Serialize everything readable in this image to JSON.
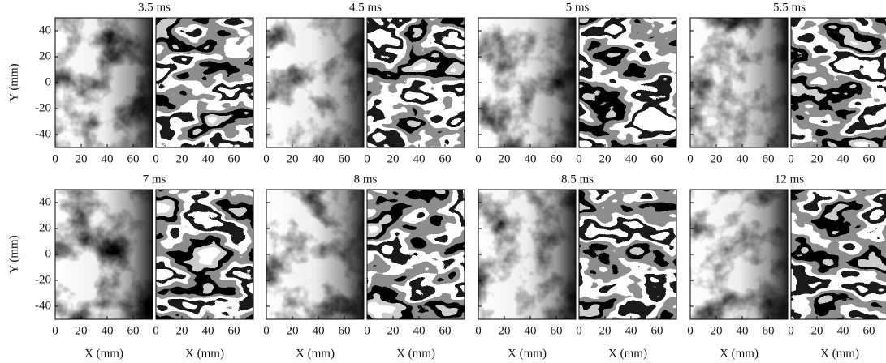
{
  "figure": {
    "y_label": "Y (mm)",
    "x_label": "X (mm)",
    "xlim": [
      0,
      75
    ],
    "ylim": [
      -50,
      50
    ],
    "xticks": [
      0,
      20,
      40,
      60
    ],
    "yticks": [
      40,
      20,
      0,
      -20,
      -40
    ],
    "panels": [
      {
        "title": "3.5 ms"
      },
      {
        "title": "4.5 ms"
      },
      {
        "title": "5 ms"
      },
      {
        "title": "5.5 ms"
      },
      {
        "title": "7 ms"
      },
      {
        "title": "8 ms"
      },
      {
        "title": "8.5 ms"
      },
      {
        "title": "12 ms"
      }
    ]
  }
}
